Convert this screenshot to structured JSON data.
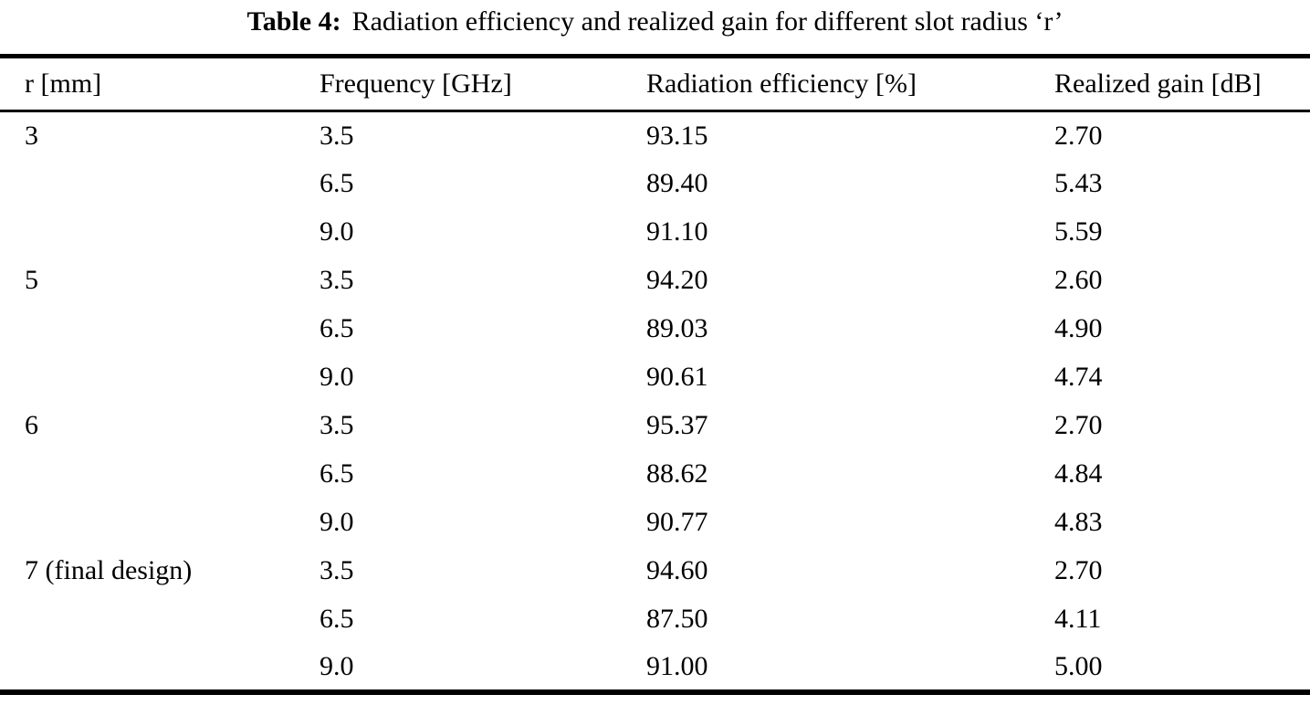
{
  "caption": {
    "label": "Table 4:",
    "text": "Radiation efficiency and realized gain for different slot radius ‘r’"
  },
  "table": {
    "columns": [
      "r [mm]",
      "Frequency [GHz]",
      "Radiation efficiency [%]",
      "Realized gain [dB]"
    ],
    "rows": [
      {
        "r": "3",
        "frequency": "3.5",
        "efficiency": "93.15",
        "gain": "2.70"
      },
      {
        "r": "",
        "frequency": "6.5",
        "efficiency": "89.40",
        "gain": "5.43"
      },
      {
        "r": "",
        "frequency": "9.0",
        "efficiency": "91.10",
        "gain": "5.59"
      },
      {
        "r": "5",
        "frequency": "3.5",
        "efficiency": "94.20",
        "gain": "2.60"
      },
      {
        "r": "",
        "frequency": "6.5",
        "efficiency": "89.03",
        "gain": "4.90"
      },
      {
        "r": "",
        "frequency": "9.0",
        "efficiency": "90.61",
        "gain": "4.74"
      },
      {
        "r": "6",
        "frequency": "3.5",
        "efficiency": "95.37",
        "gain": "2.70"
      },
      {
        "r": "",
        "frequency": "6.5",
        "efficiency": "88.62",
        "gain": "4.84"
      },
      {
        "r": "",
        "frequency": "9.0",
        "efficiency": "90.77",
        "gain": "4.83"
      },
      {
        "r": "7 (final design)",
        "frequency": "3.5",
        "efficiency": "94.60",
        "gain": "2.70"
      },
      {
        "r": "",
        "frequency": "6.5",
        "efficiency": "87.50",
        "gain": "4.11"
      },
      {
        "r": "",
        "frequency": "9.0",
        "efficiency": "91.00",
        "gain": "5.00"
      }
    ]
  },
  "colors": {
    "text": "#000000",
    "background": "#ffffff",
    "rule": "#000000"
  }
}
